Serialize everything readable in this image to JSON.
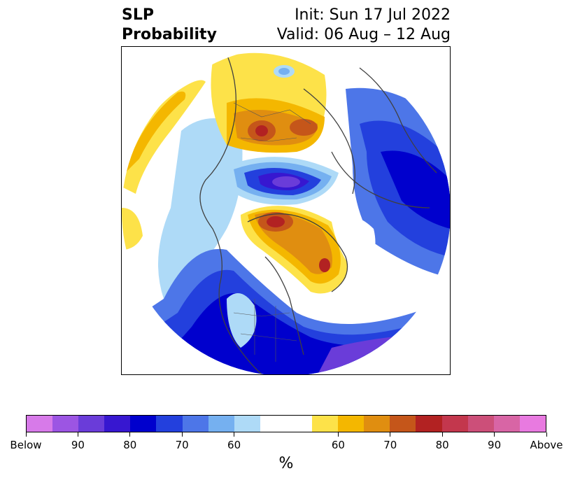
{
  "title": {
    "left_line1": "SLP",
    "left_line2": "Probability",
    "right_line1": "Init: Sun 17 Jul 2022",
    "right_line2": "Valid: 06 Aug – 12 Aug"
  },
  "colorbar": {
    "colors": [
      "#d77ae9",
      "#9c55e3",
      "#6a3cd9",
      "#3717d0",
      "#0000cd",
      "#2340dd",
      "#4d76e8",
      "#75b0f0",
      "#aedaf7",
      "#ffffff",
      "#ffffff",
      "#fde249",
      "#f4b700",
      "#e08e10",
      "#c5561a",
      "#b22222",
      "#c3374d",
      "#cc4f79",
      "#d865a5",
      "#e87ae0"
    ],
    "labels": [
      "Below",
      "90",
      "80",
      "70",
      "60",
      "60",
      "70",
      "80",
      "90",
      "Above"
    ],
    "unit": "%"
  },
  "map": {
    "projection": "north-polar-stereographic",
    "features": [
      "coastlines",
      "country-borders",
      "state-borders"
    ]
  }
}
